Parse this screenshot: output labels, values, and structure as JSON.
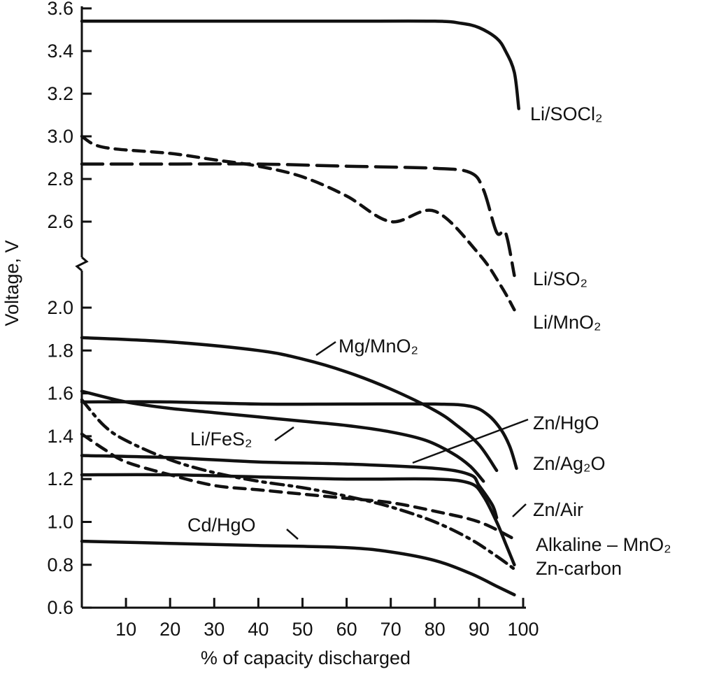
{
  "chart_data": {
    "type": "line",
    "xlabel": "% of capacity discharged",
    "ylabel": "Voltage, V",
    "xlim": [
      0,
      100
    ],
    "ylim": [
      0.6,
      3.6
    ],
    "axis_break": [
      2.1,
      2.5
    ],
    "x_ticks": [
      "10",
      "20",
      "30",
      "40",
      "50",
      "60",
      "70",
      "80",
      "90",
      "100"
    ],
    "y_ticks": [
      "0.6",
      "0.8",
      "1.0",
      "1.2",
      "1.4",
      "1.6",
      "1.8",
      "2.0",
      "2.6",
      "2.8",
      "3.0",
      "3.2",
      "3.4",
      "3.6"
    ],
    "grid": false,
    "legend": "none",
    "series": [
      {
        "name": "Li/SOCl₂",
        "style": "solid",
        "x": [
          0,
          20,
          40,
          60,
          80,
          86,
          90,
          94,
          96,
          98,
          99
        ],
        "y": [
          3.54,
          3.54,
          3.54,
          3.54,
          3.54,
          3.53,
          3.51,
          3.46,
          3.4,
          3.3,
          3.13
        ]
      },
      {
        "name": "Li/SO₂",
        "style": "long-dash",
        "x": [
          0,
          20,
          40,
          60,
          80,
          88,
          91,
          94,
          96,
          98
        ],
        "y": [
          2.87,
          2.87,
          2.87,
          2.86,
          2.85,
          2.83,
          2.75,
          2.55,
          2.35,
          2.15
        ]
      },
      {
        "name": "Li/MnO₂",
        "style": "dash",
        "x": [
          0,
          3,
          8,
          20,
          30,
          40,
          50,
          60,
          70,
          80,
          90,
          95,
          98
        ],
        "y": [
          3.0,
          2.96,
          2.94,
          2.92,
          2.89,
          2.86,
          2.81,
          2.72,
          2.6,
          2.45,
          2.25,
          2.1,
          1.99
        ]
      },
      {
        "name": "Mg/MnO₂",
        "style": "solid",
        "x": [
          0,
          20,
          40,
          50,
          60,
          70,
          80,
          85,
          90,
          94
        ],
        "y": [
          1.86,
          1.84,
          1.8,
          1.76,
          1.7,
          1.62,
          1.52,
          1.45,
          1.36,
          1.24
        ]
      },
      {
        "name": "Zn/HgO",
        "style": "solid",
        "x": [
          0,
          20,
          40,
          60,
          80,
          88,
          90,
          93,
          94
        ],
        "y": [
          1.31,
          1.3,
          1.28,
          1.27,
          1.25,
          1.22,
          1.17,
          1.08,
          1.02
        ]
      },
      {
        "name": "Zn/Ag₂O",
        "style": "solid",
        "x": [
          0,
          20,
          40,
          60,
          80,
          88,
          92,
          95,
          97,
          98.5
        ],
        "y": [
          1.56,
          1.56,
          1.55,
          1.55,
          1.55,
          1.54,
          1.5,
          1.43,
          1.35,
          1.25
        ]
      },
      {
        "name": "Zn/Air",
        "style": "solid",
        "x": [
          0,
          20,
          40,
          60,
          80,
          88,
          91,
          94,
          96,
          98
        ],
        "y": [
          1.22,
          1.22,
          1.21,
          1.2,
          1.2,
          1.18,
          1.12,
          1.0,
          0.9,
          0.8
        ]
      },
      {
        "name": "Alkaline – MnO₂",
        "style": "dash",
        "x": [
          0,
          5,
          10,
          20,
          30,
          40,
          50,
          60,
          70,
          80,
          90,
          98
        ],
        "y": [
          1.41,
          1.34,
          1.28,
          1.22,
          1.17,
          1.15,
          1.13,
          1.11,
          1.09,
          1.05,
          1.0,
          0.92
        ]
      },
      {
        "name": "Zn-carbon",
        "style": "dash-dot",
        "x": [
          0,
          5,
          10,
          20,
          30,
          40,
          50,
          60,
          70,
          80,
          88,
          94,
          98
        ],
        "y": [
          1.57,
          1.45,
          1.38,
          1.29,
          1.23,
          1.19,
          1.16,
          1.12,
          1.07,
          1.0,
          0.92,
          0.84,
          0.78
        ]
      },
      {
        "name": "Li/FeS₂",
        "style": "solid",
        "x": [
          0,
          10,
          20,
          30,
          40,
          50,
          60,
          70,
          78,
          84,
          88,
          91
        ],
        "y": [
          1.61,
          1.56,
          1.53,
          1.51,
          1.49,
          1.47,
          1.45,
          1.42,
          1.38,
          1.32,
          1.26,
          1.19
        ]
      },
      {
        "name": "Cd/HgO",
        "style": "solid",
        "x": [
          0,
          20,
          40,
          60,
          70,
          80,
          88,
          94,
          98
        ],
        "y": [
          0.91,
          0.9,
          0.89,
          0.88,
          0.86,
          0.82,
          0.76,
          0.7,
          0.66
        ]
      }
    ]
  }
}
